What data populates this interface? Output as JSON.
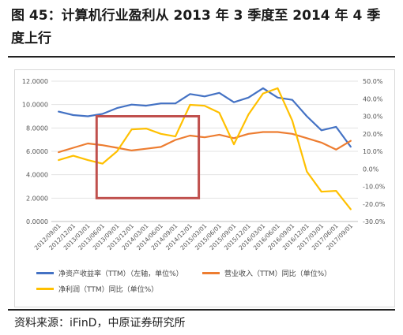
{
  "figure": {
    "title": "图 45：计算机行业盈利从 2013 年 3 季度至 2014 年 4 季度上行",
    "source": "资料来源：iFinD，中原证券研究所"
  },
  "chart_data": {
    "type": "line",
    "categories": [
      "2012/09/01",
      "2012/12/01",
      "2013/03/01",
      "2013/06/01",
      "2013/09/01",
      "2013/12/01",
      "2014/03/01",
      "2014/06/01",
      "2014/09/01",
      "2014/12/01",
      "2015/03/01",
      "2015/06/01",
      "2015/09/01",
      "2015/12/01",
      "2016/03/01",
      "2016/06/01",
      "2016/09/01",
      "2016/12/01",
      "2017/03/01",
      "2017/06/01",
      "2017/09/01"
    ],
    "left_axis": {
      "ticks": [
        "0.0000",
        "2.0000",
        "4.0000",
        "6.0000",
        "8.0000",
        "10.0000",
        "12.0000"
      ],
      "ylim": [
        0,
        12
      ]
    },
    "right_axis": {
      "ticks": [
        "-30.0%",
        "-20.0%",
        "-10.0%",
        "0.0%",
        "10.0%",
        "20.0%",
        "30.0%",
        "40.0%",
        "50.0%"
      ],
      "ylim": [
        -30,
        50
      ]
    },
    "series": [
      {
        "name": "净资产收益率（TTM）（左轴，单位%）",
        "axis": "left",
        "color": "#4472C4",
        "values": [
          9.4,
          9.1,
          9.0,
          9.2,
          9.7,
          10.0,
          9.9,
          10.1,
          10.1,
          10.9,
          10.7,
          11.0,
          10.2,
          10.6,
          11.4,
          10.6,
          10.4,
          9.0,
          7.8,
          8.1,
          6.4
        ]
      },
      {
        "name": "营业收入（TTM）同比（单位%）",
        "axis": "right",
        "color": "#ED7D31",
        "values": [
          9.5,
          12.0,
          14.5,
          13.5,
          12.0,
          10.5,
          11.5,
          12.5,
          16.5,
          19.0,
          18.0,
          19.5,
          17.5,
          20.0,
          21.0,
          21.0,
          20.0,
          17.5,
          15.0,
          11.0,
          16.0
        ]
      },
      {
        "name": "净利润（TTM）同比（单位%）",
        "axis": "right",
        "color": "#FFC000",
        "values": [
          5.0,
          7.5,
          5.0,
          3.0,
          10.0,
          22.5,
          23.0,
          20.0,
          18.5,
          36.5,
          36.0,
          32.0,
          14.0,
          31.0,
          43.0,
          46.0,
          27.5,
          -1.5,
          -13.0,
          -12.5,
          -23.0
        ]
      }
    ],
    "highlight_box": {
      "x_from": "2013/06/01",
      "x_to": "2014/12/01",
      "y_from": 2.0,
      "y_to": 9.0,
      "color": "#C0504D"
    },
    "grid": true,
    "legend_position": "bottom"
  }
}
